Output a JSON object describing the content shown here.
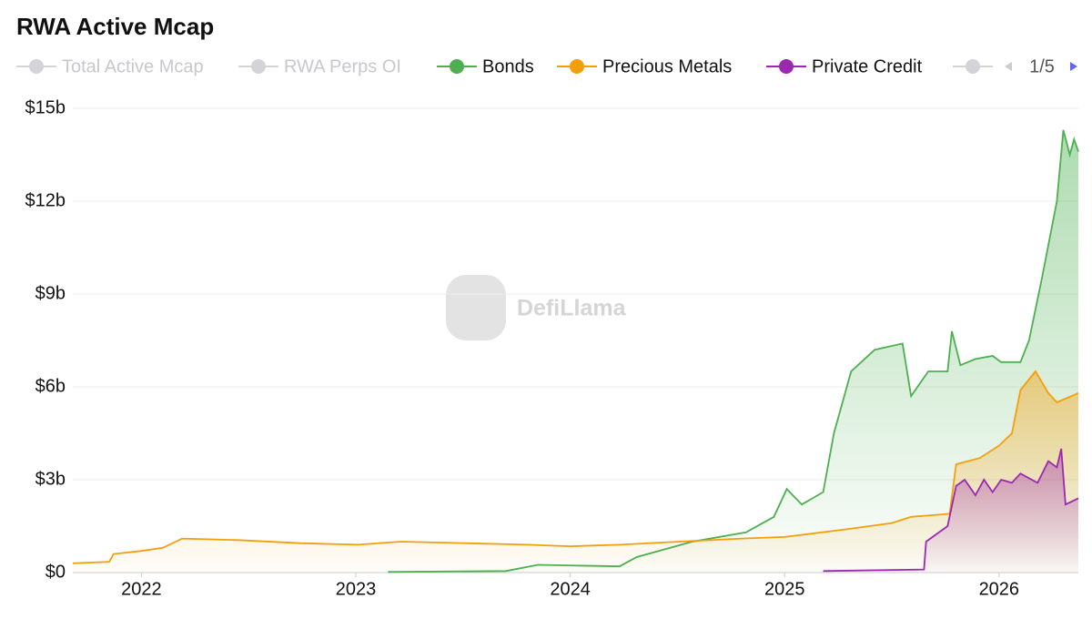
{
  "chart_data": {
    "type": "area",
    "title": "RWA Active Mcap",
    "watermark": "DefiLlama",
    "legend_page": "1/5",
    "hidden_series": [
      {
        "name": "Total Active Mcap"
      },
      {
        "name": "RWA Perps OI"
      }
    ],
    "xlim": [
      2021.68,
      2026.37
    ],
    "xticks": [
      2022,
      2023,
      2024,
      2025,
      2026
    ],
    "ylim": [
      0,
      15
    ],
    "yticks": [
      {
        "value": 0,
        "label": "$0"
      },
      {
        "value": 3,
        "label": "$3b"
      },
      {
        "value": 6,
        "label": "$6b"
      },
      {
        "value": 9,
        "label": "$9b"
      },
      {
        "value": 12,
        "label": "$12b"
      },
      {
        "value": 15,
        "label": "$15b"
      }
    ],
    "grid": true,
    "series": [
      {
        "name": "Bonds",
        "color": "#4caf50",
        "x": [
          2023.15,
          2023.7,
          2023.85,
          2024.23,
          2024.31,
          2024.57,
          2024.82,
          2024.95,
          2025.01,
          2025.08,
          2025.18,
          2025.23,
          2025.31,
          2025.42,
          2025.55,
          2025.59,
          2025.67,
          2025.76,
          2025.78,
          2025.82,
          2025.89,
          2025.97,
          2026.01,
          2026.1,
          2026.14,
          2026.2,
          2026.27,
          2026.3,
          2026.33,
          2026.35,
          2026.37
        ],
        "values": [
          0.02,
          0.05,
          0.25,
          0.2,
          0.5,
          1.0,
          1.3,
          1.8,
          2.7,
          2.2,
          2.6,
          4.5,
          6.5,
          7.2,
          7.4,
          5.7,
          6.5,
          6.5,
          7.8,
          6.7,
          6.9,
          7.0,
          6.8,
          6.8,
          7.5,
          9.5,
          12.0,
          14.3,
          13.5,
          14.0,
          13.6
        ]
      },
      {
        "name": "Precious Metals",
        "color": "#f59e0b",
        "x": [
          2021.68,
          2021.85,
          2021.87,
          2022.0,
          2022.1,
          2022.19,
          2022.45,
          2022.74,
          2023.01,
          2023.21,
          2023.51,
          2023.8,
          2024.0,
          2024.23,
          2024.51,
          2024.8,
          2025.0,
          2025.29,
          2025.5,
          2025.59,
          2025.77,
          2025.8,
          2025.91,
          2026.0,
          2026.06,
          2026.1,
          2026.17,
          2026.23,
          2026.27,
          2026.37
        ],
        "values": [
          0.3,
          0.35,
          0.6,
          0.7,
          0.8,
          1.1,
          1.05,
          0.95,
          0.9,
          1.0,
          0.95,
          0.9,
          0.85,
          0.9,
          1.0,
          1.1,
          1.15,
          1.4,
          1.6,
          1.8,
          1.9,
          3.5,
          3.7,
          4.1,
          4.5,
          5.9,
          6.5,
          5.8,
          5.5,
          5.8
        ]
      },
      {
        "name": "Private Credit",
        "color": "#9c27b0",
        "x": [
          2025.18,
          2025.65,
          2025.66,
          2025.76,
          2025.8,
          2025.84,
          2025.89,
          2025.93,
          2025.97,
          2026.01,
          2026.06,
          2026.1,
          2026.18,
          2026.23,
          2026.27,
          2026.29,
          2026.31,
          2026.37
        ],
        "values": [
          0.05,
          0.1,
          1.0,
          1.5,
          2.8,
          3.0,
          2.5,
          3.0,
          2.6,
          3.0,
          2.9,
          3.2,
          2.9,
          3.6,
          3.4,
          4.0,
          2.2,
          2.4
        ]
      }
    ]
  }
}
